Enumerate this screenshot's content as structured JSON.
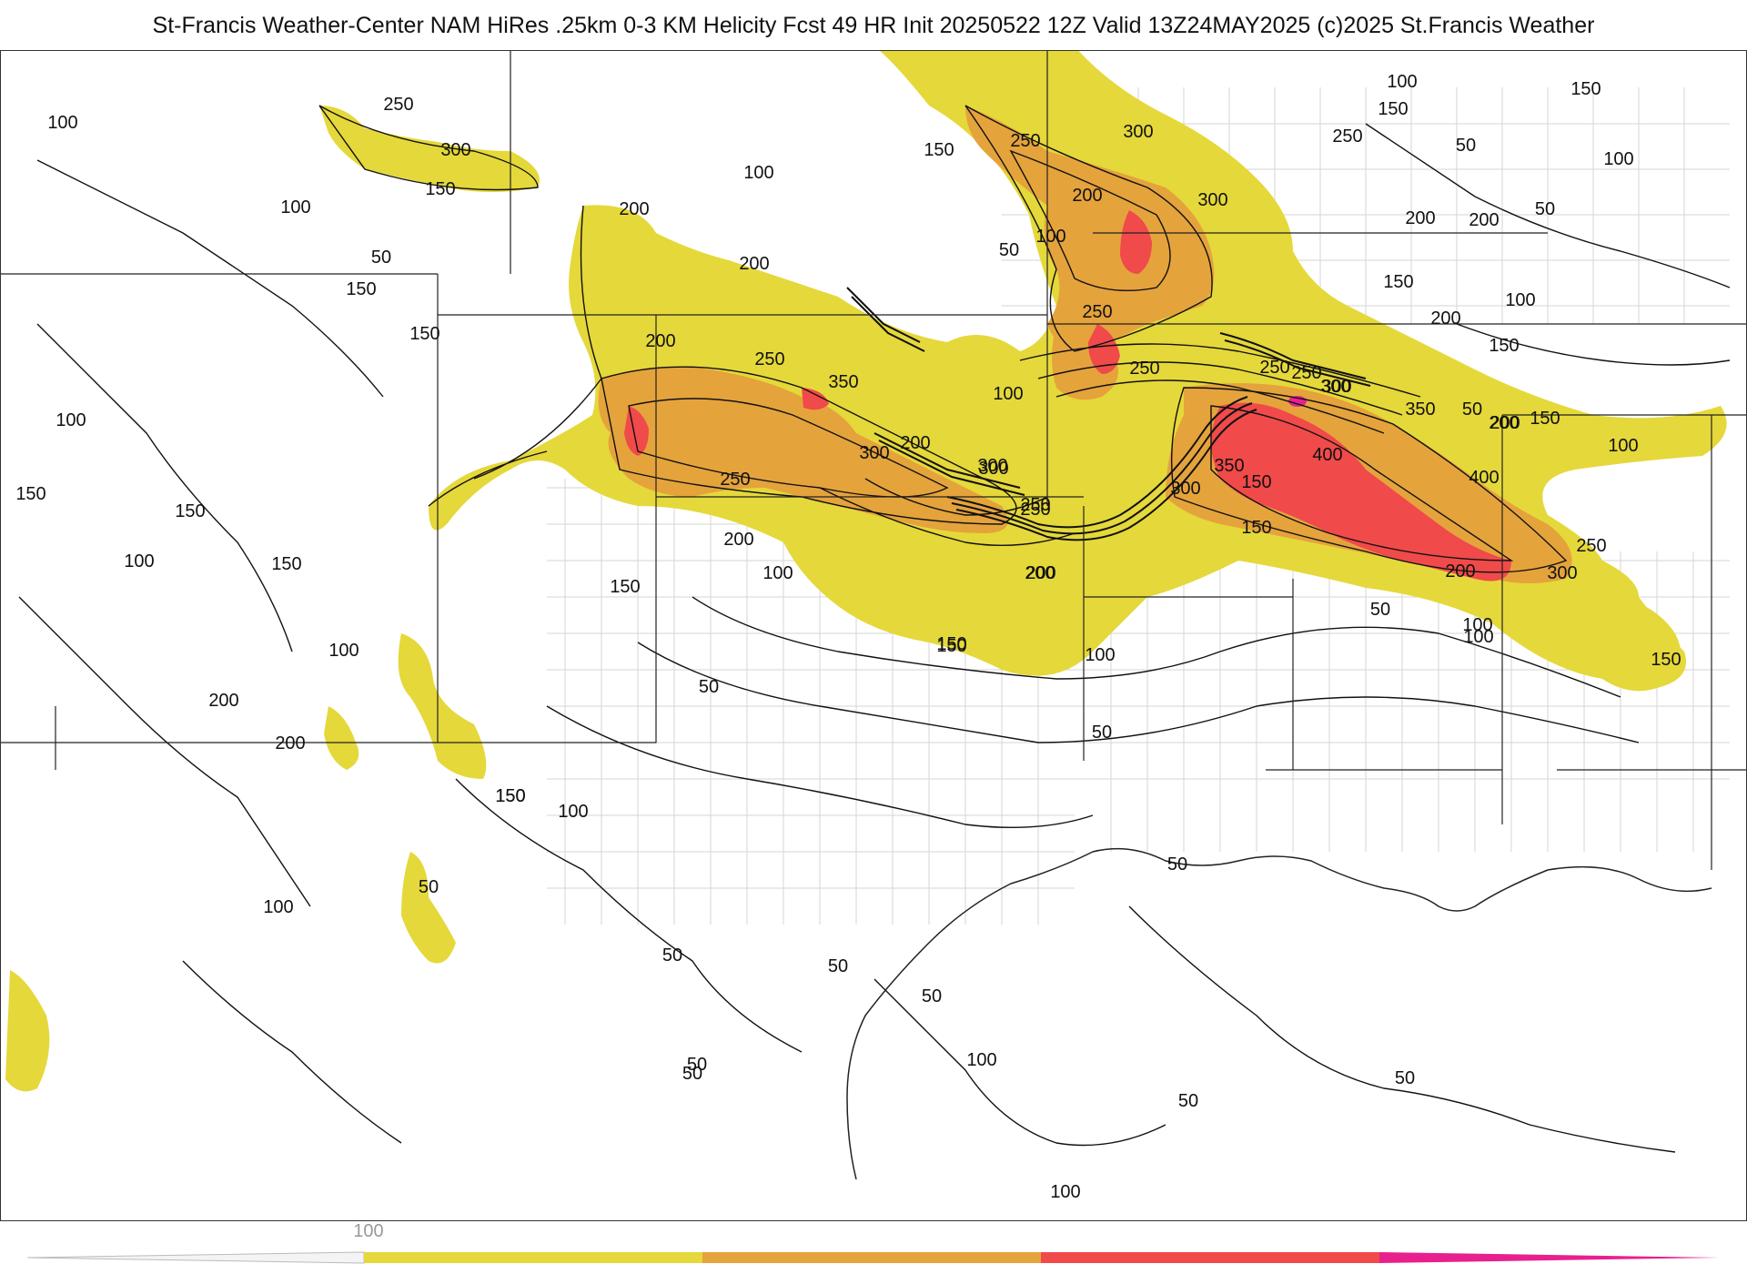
{
  "title": "St-Francis Weather-Center NAM HiRes .25km 0-3 KM Helicity Fcst 49 HR Init 20250522 12Z  Valid 13Z24MAY2025     (c)2025 St.Francis Weather",
  "colorbar": {
    "label": "100",
    "colors": [
      "#ffffff",
      "#e5d83a",
      "#e5a33c",
      "#f04a4a",
      "#e8208e"
    ]
  },
  "contour_labels": [
    "250",
    "300",
    "150",
    "100",
    "50",
    "200",
    "350",
    "400",
    "250",
    "300",
    "200",
    "150",
    "100",
    "50",
    "100",
    "150",
    "250",
    "50",
    "100",
    "150",
    "200",
    "150",
    "50",
    "100",
    "200",
    "150",
    "100",
    "50",
    "150",
    "200",
    "250",
    "300",
    "350",
    "400",
    "300",
    "250",
    "200",
    "150",
    "100",
    "50",
    "50",
    "100",
    "150",
    "200",
    "250",
    "300",
    "150",
    "100",
    "50",
    "50",
    "100",
    "150",
    "200",
    "100",
    "50",
    "50"
  ],
  "colors": {
    "yellow": "#e5d83a",
    "orange": "#e5a33c",
    "red": "#f04a4a",
    "magenta": "#e8208e",
    "contour": "#111111",
    "border": "#333333",
    "county": "#cccccc"
  }
}
